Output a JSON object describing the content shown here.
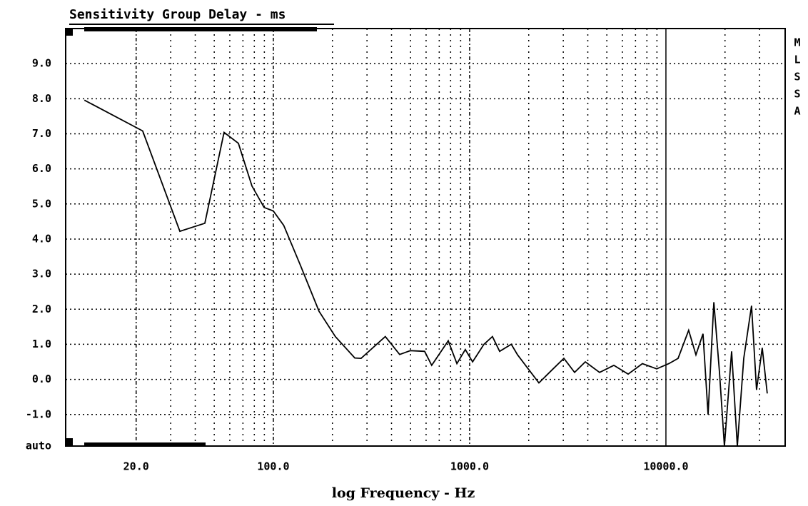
{
  "chart_data": {
    "type": "line",
    "title": "Sensitivity Group Delay - ms",
    "x_label": "log Frequency - Hz",
    "side_label": [
      "M",
      "L",
      "S",
      "S",
      "A"
    ],
    "xscale": "log",
    "color": "#000000",
    "grid": true,
    "xlim": [
      8.75,
      40500
    ],
    "ylim": [
      -1.9,
      10
    ],
    "xticks": [
      {
        "value": 20,
        "label": "20.0"
      },
      {
        "value": 100,
        "label": "100.0"
      },
      {
        "value": 1000,
        "label": "1000.0"
      },
      {
        "value": 10000,
        "label": "10000.0"
      }
    ],
    "xgrid": [
      30,
      40,
      50,
      60,
      70,
      80,
      90,
      200,
      300,
      400,
      500,
      600,
      700,
      800,
      900,
      2000,
      3000,
      4000,
      5000,
      6000,
      7000,
      8000,
      9000,
      20000,
      30000
    ],
    "yticks": [
      {
        "value": -1.9,
        "label": "auto"
      },
      {
        "value": -1,
        "label": "-1.0"
      },
      {
        "value": 0,
        "label": "0.0"
      },
      {
        "value": 1,
        "label": "1.0"
      },
      {
        "value": 2,
        "label": "2.0"
      },
      {
        "value": 3,
        "label": "3.0"
      },
      {
        "value": 4,
        "label": "4.0"
      },
      {
        "value": 5,
        "label": "5.0"
      },
      {
        "value": 6,
        "label": "6.0"
      },
      {
        "value": 7,
        "label": "7.0"
      },
      {
        "value": 8,
        "label": "8.0"
      },
      {
        "value": 9,
        "label": "9.0"
      }
    ],
    "x": [
      10.9,
      21.6,
      33.4,
      44.8,
      56.1,
      66.4,
      77.8,
      89.7,
      100,
      113,
      137,
      171,
      207,
      260,
      280,
      372,
      440,
      499,
      590,
      641,
      778,
      861,
      951,
      1035,
      1183,
      1307,
      1422,
      1630,
      1754,
      1987,
      2254,
      2663,
      3020,
      3426,
      3883,
      4591,
      5430,
      6420,
      7590,
      8970,
      10350,
      11530,
      13060,
      14220,
      15450,
      16400,
      17540,
      18750,
      19860,
      21620,
      23110,
      24910,
      27300,
      28950,
      30960,
      32810
    ],
    "values": [
      7.96,
      7.08,
      4.22,
      4.45,
      7.04,
      6.73,
      5.51,
      4.9,
      4.8,
      4.39,
      3.27,
      1.94,
      1.22,
      0.61,
      0.6,
      1.22,
      0.71,
      0.82,
      0.8,
      0.4,
      1.1,
      0.45,
      0.85,
      0.5,
      1.0,
      1.22,
      0.8,
      1.0,
      0.7,
      0.3,
      -0.1,
      0.3,
      0.6,
      0.2,
      0.5,
      0.2,
      0.4,
      0.15,
      0.45,
      0.3,
      0.45,
      0.6,
      1.4,
      0.7,
      1.3,
      -1.0,
      2.2,
      0.2,
      -1.9,
      0.8,
      -1.9,
      0.6,
      2.1,
      -0.3,
      0.9,
      -0.4
    ]
  }
}
